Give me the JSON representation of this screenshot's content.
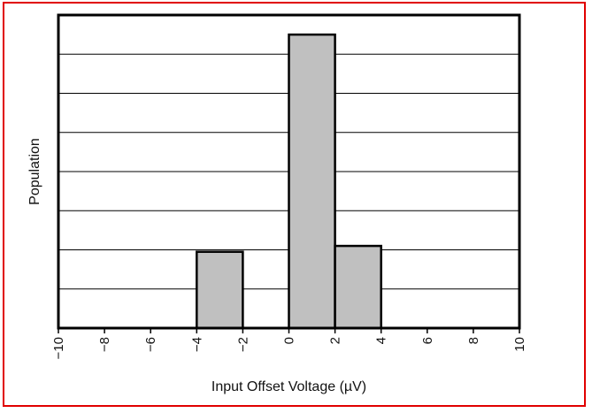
{
  "chart_data": {
    "type": "bar",
    "title": "",
    "xlabel": "Input Offset Voltage (µV)",
    "ylabel": "Population",
    "xlim": [
      -10,
      10
    ],
    "ylim": [
      0,
      8
    ],
    "x_ticks": [
      "−10",
      "−8",
      "−6",
      "−4",
      "−2",
      "0",
      "2",
      "4",
      "6",
      "8",
      "10"
    ],
    "y_ticks_labeled": false,
    "grid": "horizontal",
    "bins": [
      {
        "x_start": -4,
        "x_end": -2,
        "value": 1.95
      },
      {
        "x_start": 0,
        "x_end": 2,
        "value": 7.5
      },
      {
        "x_start": 2,
        "x_end": 4,
        "value": 2.1
      }
    ],
    "colors": {
      "bar_fill": "#c0c0c0",
      "bar_edge": "#000000",
      "frame": "#e00000",
      "grid": "#000000"
    }
  }
}
